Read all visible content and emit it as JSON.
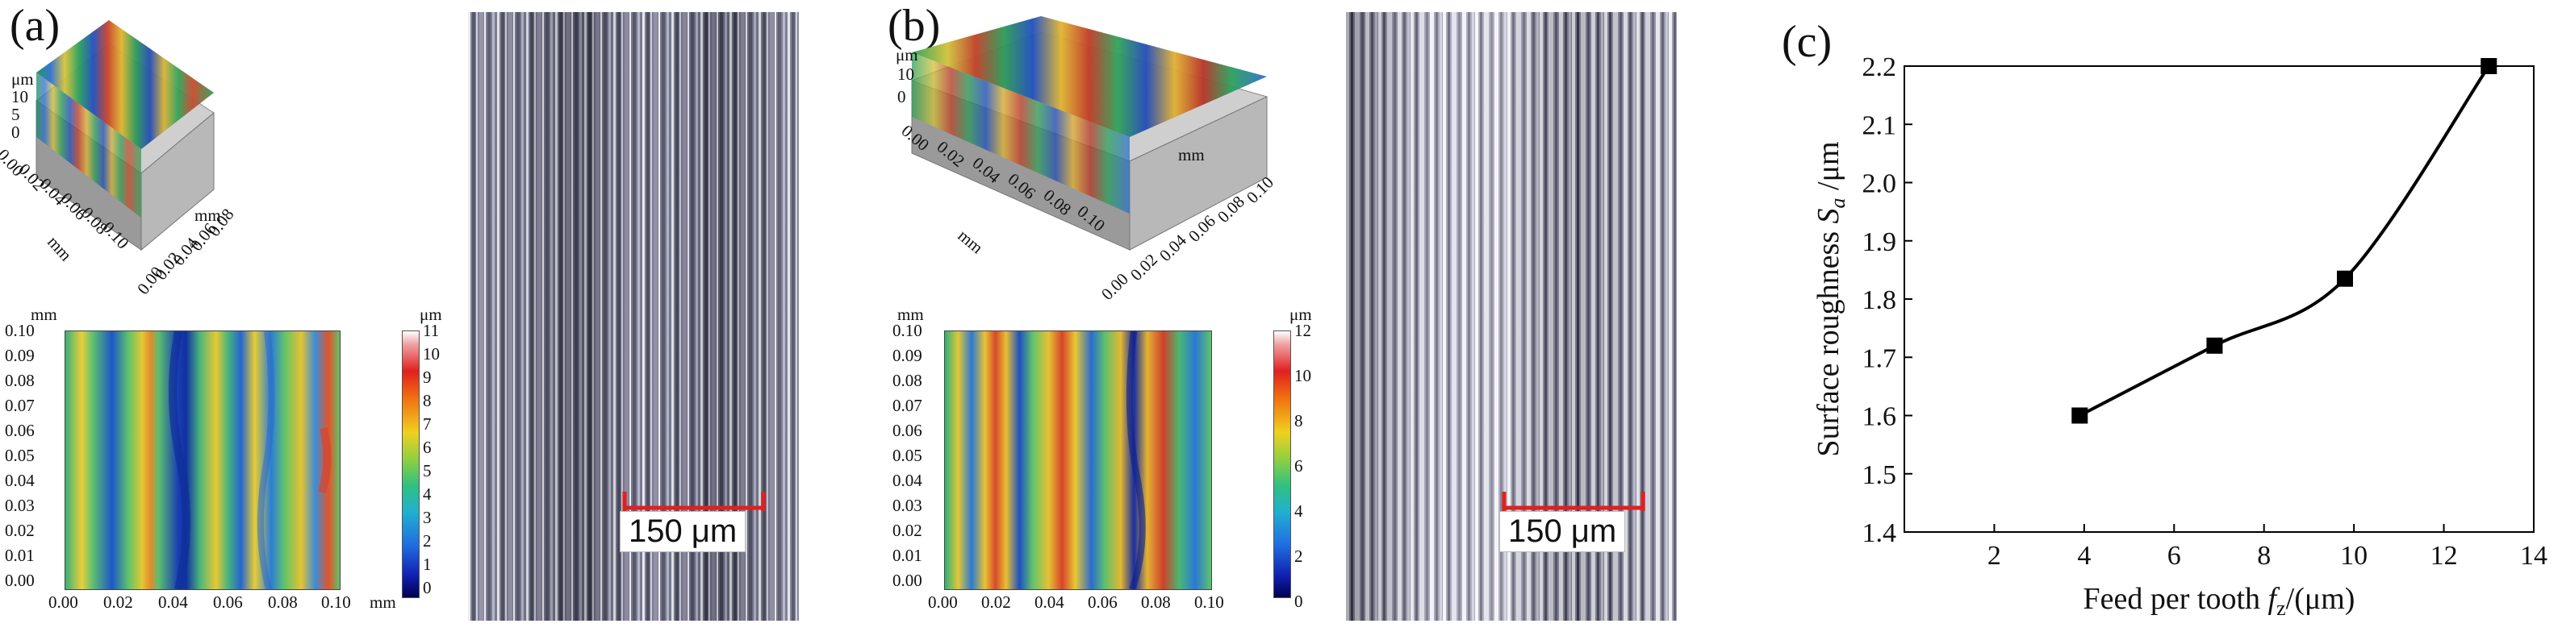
{
  "panels": {
    "a": {
      "letter": "(a)",
      "surface3d": {
        "z_unit": "μm",
        "z_ticks": [
          "10",
          "5",
          "0"
        ],
        "x_ticks": [
          "0.00",
          "0.02",
          "0.04",
          "0.06",
          "0.08",
          "0.10"
        ],
        "y_ticks": [
          "0.00",
          "0.02",
          "0.04",
          "0.06",
          "0.08"
        ],
        "x_unit": "mm",
        "y_unit": "mm"
      },
      "heatmap": {
        "y_unit": "mm",
        "x_unit": "mm",
        "y_ticks": [
          "0.10",
          "0.09",
          "0.08",
          "0.07",
          "0.06",
          "0.05",
          "0.04",
          "0.03",
          "0.02",
          "0.01",
          "0.00"
        ],
        "x_ticks": [
          "0.00",
          "0.02",
          "0.04",
          "0.06",
          "0.08",
          "0.10"
        ],
        "colorbar_unit": "μm",
        "colorbar_ticks": [
          "11",
          "10",
          "9",
          "8",
          "7",
          "6",
          "5",
          "4",
          "3",
          "2",
          "1",
          "0"
        ]
      },
      "scale_label": "150 μm"
    },
    "b": {
      "letter": "(b)",
      "surface3d": {
        "z_unit": "μm",
        "z_ticks": [
          "10",
          "0"
        ],
        "x_ticks": [
          "0.00",
          "0.02",
          "0.04",
          "0.06",
          "0.08",
          "0.10"
        ],
        "y_ticks": [
          "0.00",
          "0.02",
          "0.04",
          "0.06",
          "0.08",
          "0.10"
        ],
        "x_unit": "mm",
        "y_unit": "mm"
      },
      "heatmap": {
        "y_unit": "mm",
        "x_unit": "mm",
        "y_ticks": [
          "0.10",
          "0.09",
          "0.08",
          "0.07",
          "0.06",
          "0.05",
          "0.04",
          "0.03",
          "0.02",
          "0.01",
          "0.00"
        ],
        "x_ticks": [
          "0.00",
          "0.02",
          "0.04",
          "0.06",
          "0.08",
          "0.10"
        ],
        "colorbar_unit": "μm",
        "colorbar_ticks": [
          "12",
          "10",
          "8",
          "6",
          "4",
          "2",
          "0"
        ]
      },
      "scale_label": "150 μm"
    },
    "c": {
      "letter": "(c)"
    }
  },
  "chart_data": {
    "type": "line",
    "title": "",
    "xlabel_prefix": "Feed per tooth ",
    "xlabel_var": "f",
    "xlabel_sub": "z",
    "xlabel_suffix": "/(μm)",
    "ylabel_prefix": "Surface roughness ",
    "ylabel_var": "S",
    "ylabel_sub": "a",
    "ylabel_suffix": " /μm",
    "x": [
      3.9,
      6.9,
      9.8,
      13.0
    ],
    "y": [
      1.6,
      1.72,
      1.835,
      2.2
    ],
    "xlim": [
      0,
      14
    ],
    "ylim": [
      1.4,
      2.2
    ],
    "x_ticks": [
      2,
      4,
      6,
      8,
      10,
      12,
      14
    ],
    "y_ticks": [
      1.4,
      1.5,
      1.6,
      1.7,
      1.8,
      1.9,
      2.0,
      2.1,
      2.2
    ],
    "marker": "square",
    "line_color": "#000000"
  }
}
